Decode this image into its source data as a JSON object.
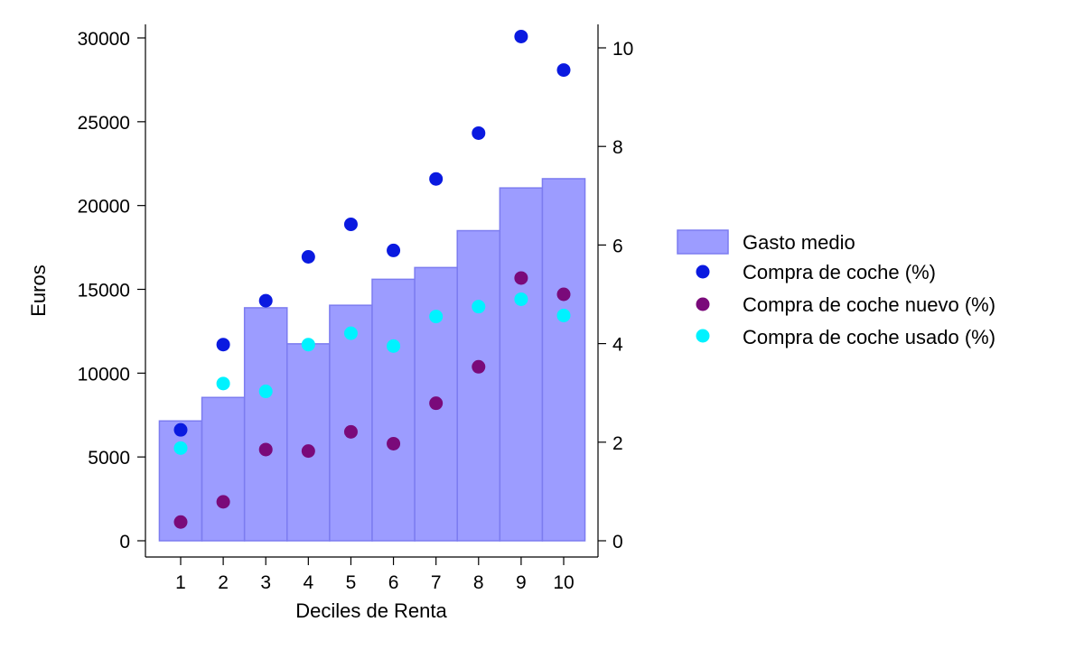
{
  "colors": {
    "bar_fill": "#9c9cff",
    "bar_stroke": "#7c7cf0",
    "compra_coche": "#0a1ae0",
    "compra_nuevo": "#7a0a7a",
    "compra_usado": "#00f2ff"
  },
  "chart_data": {
    "type": "bar",
    "xlabel": "Deciles de Renta",
    "ylabel": "Euros",
    "categories": [
      "1",
      "2",
      "3",
      "4",
      "5",
      "6",
      "7",
      "8",
      "9",
      "10"
    ],
    "xlim": [
      0.25,
      10.55
    ],
    "ylim": [
      0,
      31000
    ],
    "y2lim": [
      0,
      10.55
    ],
    "yticks": [
      "0",
      "5000",
      "10000",
      "15000",
      "20000",
      "25000",
      "30000"
    ],
    "y2ticks": [
      "0",
      "2",
      "4",
      "6",
      "8",
      "10"
    ],
    "series": [
      {
        "name": "Gasto medio",
        "kind": "bar",
        "axis": "left",
        "values": [
          7150,
          8550,
          13900,
          11750,
          14050,
          15600,
          16300,
          18500,
          21050,
          21600
        ]
      },
      {
        "name": "Compra de coche (%)",
        "kind": "scatter",
        "axis": "right",
        "values": [
          2.25,
          3.98,
          4.87,
          5.76,
          6.42,
          5.89,
          7.34,
          8.27,
          10.23,
          9.55
        ]
      },
      {
        "name": "Compra de coche nuevo (%)",
        "kind": "scatter",
        "axis": "right",
        "values": [
          0.38,
          0.79,
          1.85,
          1.82,
          2.21,
          1.97,
          2.79,
          3.53,
          5.33,
          5.0
        ]
      },
      {
        "name": "Compra de coche usado (%)",
        "kind": "scatter",
        "axis": "right",
        "values": [
          1.88,
          3.19,
          3.03,
          3.98,
          4.21,
          3.95,
          4.55,
          4.75,
          4.9,
          4.57
        ]
      }
    ],
    "legend": {
      "position": "right",
      "entries": [
        "Gasto medio",
        "Compra de coche (%)",
        "Compra de coche nuevo (%)",
        "Compra de coche usado (%)"
      ]
    }
  }
}
